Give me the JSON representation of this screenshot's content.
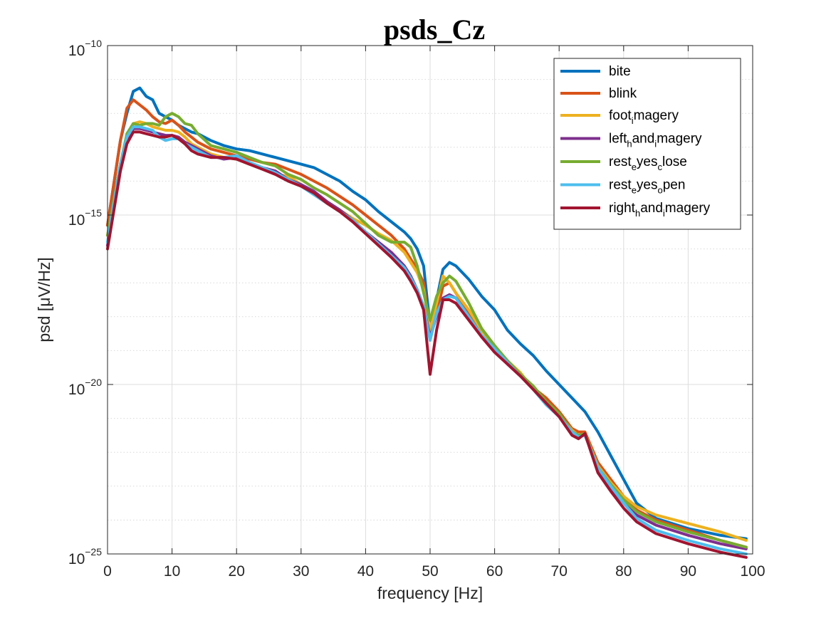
{
  "chart_data": {
    "type": "line",
    "title": "psds_Cz",
    "xlabel": "frequency [Hz]",
    "ylabel": "psd [μV/Hz]",
    "xlim": [
      0,
      100
    ],
    "ylim_exponent": [
      -25,
      -10
    ],
    "yscale": "log",
    "grid": true,
    "legend_position": "top-right",
    "x_ticks": [
      {
        "value": 0,
        "label": "0"
      },
      {
        "value": 10,
        "label": "10"
      },
      {
        "value": 20,
        "label": "20"
      },
      {
        "value": 30,
        "label": "30"
      },
      {
        "value": 40,
        "label": "40"
      },
      {
        "value": 50,
        "label": "50"
      },
      {
        "value": 60,
        "label": "60"
      },
      {
        "value": 70,
        "label": "70"
      },
      {
        "value": 80,
        "label": "80"
      },
      {
        "value": 90,
        "label": "90"
      },
      {
        "value": 100,
        "label": "100"
      }
    ],
    "y_ticks": [
      {
        "exponent": -10,
        "base": "10",
        "sup": "−10"
      },
      {
        "exponent": -15,
        "base": "10",
        "sup": "−15"
      },
      {
        "exponent": -20,
        "base": "10",
        "sup": "−20"
      },
      {
        "exponent": -25,
        "base": "10",
        "sup": "−25"
      }
    ],
    "x": [
      0,
      2,
      3,
      4,
      5,
      6,
      7,
      8,
      9,
      10,
      11,
      12,
      13,
      14,
      16,
      18,
      20,
      22,
      24,
      26,
      28,
      30,
      32,
      34,
      36,
      38,
      40,
      42,
      44,
      46,
      47,
      48,
      49,
      50,
      51,
      52,
      53,
      54,
      56,
      58,
      60,
      62,
      64,
      66,
      68,
      70,
      72,
      73,
      74,
      76,
      78,
      80,
      82,
      85,
      90,
      95,
      99
    ],
    "y_axis_note": "log10 of psd",
    "series": [
      {
        "name": "bite",
        "color": "#0072BD",
        "legend_parts": [
          [
            "bite",
            ""
          ]
        ],
        "log10_psd": [
          -15.3,
          -12.8,
          -12.0,
          -11.35,
          -11.25,
          -11.5,
          -11.6,
          -12.0,
          -12.1,
          -12.2,
          -12.35,
          -12.45,
          -12.55,
          -12.6,
          -12.8,
          -12.95,
          -13.05,
          -13.1,
          -13.2,
          -13.3,
          -13.4,
          -13.5,
          -13.6,
          -13.8,
          -14.0,
          -14.3,
          -14.55,
          -14.9,
          -15.2,
          -15.5,
          -15.7,
          -16.0,
          -16.5,
          -18.3,
          -17.5,
          -16.6,
          -16.4,
          -16.5,
          -16.9,
          -17.4,
          -17.8,
          -18.4,
          -18.8,
          -19.15,
          -19.6,
          -20.0,
          -20.4,
          -20.6,
          -20.8,
          -21.4,
          -22.1,
          -22.8,
          -23.5,
          -23.95,
          -24.25,
          -24.45,
          -24.55
        ]
      },
      {
        "name": "blink",
        "color": "#D95319",
        "legend_parts": [
          [
            "blink",
            ""
          ]
        ],
        "log10_psd": [
          -15.3,
          -12.8,
          -11.85,
          -11.6,
          -11.75,
          -11.9,
          -12.1,
          -12.25,
          -12.3,
          -12.2,
          -12.35,
          -12.55,
          -12.7,
          -12.85,
          -13.05,
          -13.15,
          -13.25,
          -13.35,
          -13.45,
          -13.5,
          -13.65,
          -13.8,
          -14.0,
          -14.2,
          -14.45,
          -14.7,
          -15.0,
          -15.3,
          -15.6,
          -16.0,
          -16.3,
          -16.6,
          -17.0,
          -18.5,
          -17.9,
          -17.1,
          -17.0,
          -17.3,
          -17.9,
          -18.4,
          -18.9,
          -19.3,
          -19.7,
          -20.1,
          -20.4,
          -20.8,
          -21.3,
          -21.4,
          -21.4,
          -22.3,
          -22.8,
          -23.3,
          -23.7,
          -24.0,
          -24.3,
          -24.6,
          -24.8
        ]
      },
      {
        "name": "foot_imagery",
        "color": "#EDB120",
        "legend_parts": [
          [
            "foot",
            ""
          ],
          [
            "i",
            "sub"
          ],
          [
            "magery",
            ""
          ]
        ],
        "log10_psd": [
          -15.6,
          -13.5,
          -12.7,
          -12.3,
          -12.25,
          -12.3,
          -12.4,
          -12.45,
          -12.5,
          -12.5,
          -12.55,
          -12.7,
          -12.9,
          -13.0,
          -13.2,
          -13.3,
          -13.35,
          -13.5,
          -13.6,
          -13.8,
          -13.85,
          -14.1,
          -14.4,
          -14.6,
          -14.85,
          -15.1,
          -15.3,
          -15.55,
          -15.75,
          -16.1,
          -16.4,
          -16.7,
          -17.2,
          -18.4,
          -17.6,
          -16.8,
          -17.0,
          -17.3,
          -17.8,
          -18.4,
          -18.9,
          -19.3,
          -19.65,
          -20.15,
          -20.6,
          -20.9,
          -21.35,
          -21.5,
          -21.45,
          -22.4,
          -22.9,
          -23.3,
          -23.6,
          -23.85,
          -24.1,
          -24.35,
          -24.6
        ]
      },
      {
        "name": "left_hand_imagery",
        "color": "#7E2F8E",
        "legend_parts": [
          [
            "left",
            ""
          ],
          [
            "h",
            "sub"
          ],
          [
            "and",
            ""
          ],
          [
            "i",
            "sub"
          ],
          [
            "magery",
            ""
          ]
        ],
        "log10_psd": [
          -15.9,
          -13.6,
          -12.8,
          -12.45,
          -12.45,
          -12.5,
          -12.55,
          -12.6,
          -12.65,
          -12.65,
          -12.7,
          -12.85,
          -12.95,
          -13.05,
          -13.25,
          -13.35,
          -13.3,
          -13.45,
          -13.6,
          -13.7,
          -13.95,
          -14.1,
          -14.3,
          -14.6,
          -14.85,
          -15.15,
          -15.5,
          -15.8,
          -16.1,
          -16.5,
          -16.8,
          -17.2,
          -17.7,
          -18.6,
          -18.0,
          -17.45,
          -17.35,
          -17.45,
          -18.0,
          -18.6,
          -19.0,
          -19.4,
          -19.75,
          -20.1,
          -20.55,
          -20.9,
          -21.4,
          -21.5,
          -21.45,
          -22.55,
          -23.05,
          -23.5,
          -23.85,
          -24.15,
          -24.45,
          -24.7,
          -24.85
        ]
      },
      {
        "name": "rest_eyes_close",
        "color": "#77AC30",
        "legend_parts": [
          [
            "rest",
            ""
          ],
          [
            "e",
            "sub"
          ],
          [
            "yes",
            ""
          ],
          [
            "c",
            "sub"
          ],
          [
            "lose",
            ""
          ]
        ],
        "log10_psd": [
          -15.6,
          -13.5,
          -12.6,
          -12.3,
          -12.35,
          -12.3,
          -12.3,
          -12.35,
          -12.1,
          -12.0,
          -12.1,
          -12.3,
          -12.35,
          -12.6,
          -12.95,
          -13.05,
          -13.15,
          -13.3,
          -13.45,
          -13.55,
          -13.8,
          -13.95,
          -14.2,
          -14.4,
          -14.65,
          -14.9,
          -15.25,
          -15.6,
          -15.8,
          -15.8,
          -15.95,
          -16.5,
          -17.3,
          -18.1,
          -17.4,
          -17.0,
          -16.8,
          -16.95,
          -17.6,
          -18.35,
          -18.85,
          -19.3,
          -19.7,
          -20.05,
          -20.5,
          -20.85,
          -21.4,
          -21.5,
          -21.45,
          -22.45,
          -22.95,
          -23.4,
          -23.75,
          -24.05,
          -24.35,
          -24.6,
          -24.8
        ]
      },
      {
        "name": "rest_eyes_open",
        "color": "#4DBEEE",
        "legend_parts": [
          [
            "rest",
            ""
          ],
          [
            "e",
            "sub"
          ],
          [
            "yes",
            ""
          ],
          [
            "o",
            "sub"
          ],
          [
            "pen",
            ""
          ]
        ],
        "log10_psd": [
          -15.8,
          -13.5,
          -12.7,
          -12.4,
          -12.4,
          -12.45,
          -12.5,
          -12.7,
          -12.8,
          -12.75,
          -12.75,
          -12.9,
          -13.0,
          -13.1,
          -13.3,
          -13.3,
          -13.25,
          -13.45,
          -13.6,
          -13.75,
          -13.95,
          -14.15,
          -14.4,
          -14.65,
          -14.9,
          -15.15,
          -15.5,
          -15.85,
          -16.2,
          -16.55,
          -16.85,
          -17.2,
          -17.7,
          -18.7,
          -17.9,
          -17.5,
          -17.4,
          -17.45,
          -18.0,
          -18.55,
          -18.95,
          -19.35,
          -19.75,
          -20.15,
          -20.6,
          -20.95,
          -21.4,
          -21.55,
          -21.5,
          -22.45,
          -23.0,
          -23.5,
          -23.95,
          -24.3,
          -24.6,
          -24.85,
          -25.0
        ]
      },
      {
        "name": "right_hand_imagery",
        "color": "#A2142F",
        "legend_parts": [
          [
            "right",
            ""
          ],
          [
            "h",
            "sub"
          ],
          [
            "and",
            ""
          ],
          [
            "i",
            "sub"
          ],
          [
            "magery",
            ""
          ]
        ],
        "log10_psd": [
          -16.0,
          -13.7,
          -12.9,
          -12.55,
          -12.55,
          -12.6,
          -12.65,
          -12.7,
          -12.7,
          -12.65,
          -12.75,
          -12.9,
          -13.1,
          -13.2,
          -13.3,
          -13.3,
          -13.35,
          -13.5,
          -13.65,
          -13.8,
          -14.0,
          -14.15,
          -14.35,
          -14.65,
          -14.9,
          -15.2,
          -15.55,
          -15.9,
          -16.25,
          -16.65,
          -16.95,
          -17.3,
          -17.8,
          -19.7,
          -18.4,
          -17.5,
          -17.5,
          -17.6,
          -18.1,
          -18.6,
          -19.05,
          -19.4,
          -19.75,
          -20.15,
          -20.55,
          -20.95,
          -21.5,
          -21.6,
          -21.45,
          -22.6,
          -23.15,
          -23.65,
          -24.05,
          -24.4,
          -24.7,
          -24.95,
          -25.1
        ]
      }
    ]
  }
}
